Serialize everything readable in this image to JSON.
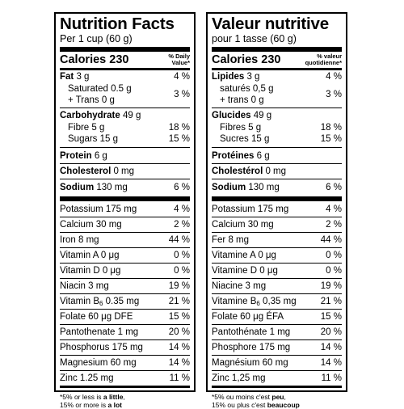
{
  "en": {
    "title": "Nutrition Facts",
    "serving": "Per 1 cup (60 g)",
    "calories": "Calories 230",
    "dv_header": "% Daily\nValue*",
    "fat": {
      "name": "Fat",
      "amount": "3 g",
      "dv": "4 %"
    },
    "saturated": {
      "name": "Saturated 0.5 g"
    },
    "trans": {
      "name": "+ Trans 0 g"
    },
    "sat_trans_dv": "3 %",
    "carbohydrate": {
      "name": "Carbohydrate",
      "amount": "49 g"
    },
    "fibre": {
      "name": "Fibre 5 g",
      "dv": "18 %"
    },
    "sugars": {
      "name": "Sugars 15 g",
      "dv": "15 %"
    },
    "protein": {
      "name": "Protein",
      "amount": "6 g"
    },
    "cholesterol": {
      "name": "Cholesterol",
      "amount": "0 mg"
    },
    "sodium": {
      "name": "Sodium",
      "amount": "130 mg",
      "dv": "6 %"
    },
    "minerals": [
      {
        "label": "Potassium 175 mg",
        "dv": "4 %"
      },
      {
        "label": "Calcium 30 mg",
        "dv": "2 %"
      },
      {
        "label": "Iron 8 mg",
        "dv": "44 %"
      },
      {
        "label": "Vitamin A 0 μg",
        "dv": "0 %"
      },
      {
        "label": "Vitamin D 0 μg",
        "dv": "0 %"
      },
      {
        "label": "Niacin 3 mg",
        "dv": "19 %"
      },
      {
        "label_pre": "Vitamin B",
        "label_sub": "6",
        "label_post": " 0.35 mg",
        "dv": "21 %"
      },
      {
        "label": "Folate 60 μg DFE",
        "dv": "15 %"
      },
      {
        "label": "Pantothenate 1 mg",
        "dv": "20 %"
      },
      {
        "label": "Phosphorus 175 mg",
        "dv": "14 %"
      },
      {
        "label": "Magnesium 60 mg",
        "dv": "14 %"
      },
      {
        "label": "Zinc 1.25 mg",
        "dv": "11 %"
      }
    ],
    "footnote": {
      "l1_pre": "*5% or less is ",
      "l1_bold": "a little",
      "l1_post": ",",
      "l2_pre": "15% or more is ",
      "l2_bold": "a lot"
    }
  },
  "fr": {
    "title": "Valeur nutritive",
    "serving": "pour 1 tasse (60 g)",
    "calories": "Calories 230",
    "dv_header": "% valeur\nquotidienne*",
    "fat": {
      "name": "Lipides",
      "amount": "3 g",
      "dv": "4 %"
    },
    "saturated": {
      "name": "saturés 0,5 g"
    },
    "trans": {
      "name": "+ trans 0 g"
    },
    "sat_trans_dv": "3 %",
    "carbohydrate": {
      "name": "Glucides",
      "amount": "49 g"
    },
    "fibre": {
      "name": "Fibres 5 g",
      "dv": "18 %"
    },
    "sugars": {
      "name": "Sucres 15 g",
      "dv": "15 %"
    },
    "protein": {
      "name": "Protéines",
      "amount": "6 g"
    },
    "cholesterol": {
      "name": "Cholestérol",
      "amount": "0 mg"
    },
    "sodium": {
      "name": "Sodium",
      "amount": "130 mg",
      "dv": "6 %"
    },
    "minerals": [
      {
        "label": "Potassium 175 mg",
        "dv": "4 %"
      },
      {
        "label": "Calcium 30 mg",
        "dv": "2 %"
      },
      {
        "label": "Fer 8 mg",
        "dv": "44 %"
      },
      {
        "label": "Vitamine A 0 μg",
        "dv": "0 %"
      },
      {
        "label": "Vitamine D 0 μg",
        "dv": "0 %"
      },
      {
        "label": "Niacine 3 mg",
        "dv": "19 %"
      },
      {
        "label_pre": "Vitamine B",
        "label_sub": "6",
        "label_post": " 0,35 mg",
        "dv": "21 %"
      },
      {
        "label": "Folate 60 μg ÉFA",
        "dv": "15 %"
      },
      {
        "label": "Pantothénate 1 mg",
        "dv": "20 %"
      },
      {
        "label": "Phosphore 175 mg",
        "dv": "14 %"
      },
      {
        "label": "Magnésium 60 mg",
        "dv": "14 %"
      },
      {
        "label": "Zinc 1,25 mg",
        "dv": "11 %"
      }
    ],
    "footnote": {
      "l1_pre": "*5% ou moins c'est ",
      "l1_bold": "peu",
      "l1_post": ",",
      "l2_pre": "15% ou plus c'est ",
      "l2_bold": "beaucoup"
    }
  }
}
